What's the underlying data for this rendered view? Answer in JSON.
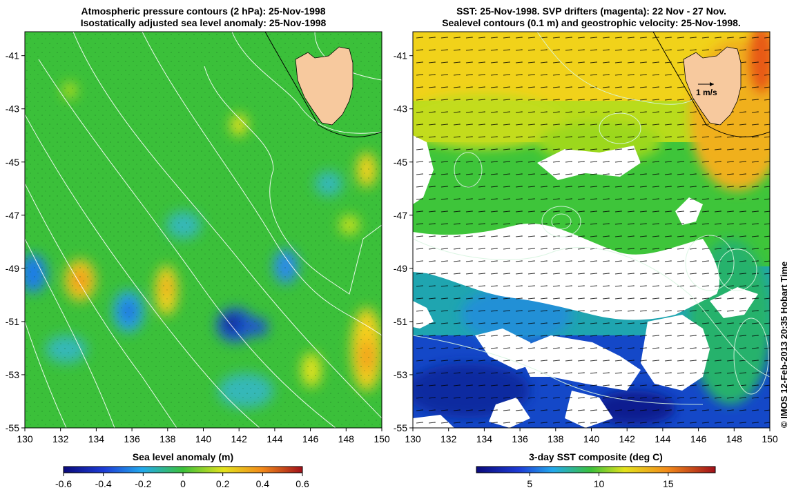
{
  "left_panel": {
    "title_line1": "Atmospheric pressure contours (2 hPa): 25-Nov-1998",
    "title_line2": "Isostatically adjusted sea level anomaly: 25-Nov-1998",
    "colorbar_label": "Sea level anomaly (m)",
    "colorbar_ticks": [
      "-0.6",
      "-0.4",
      "-0.2",
      "0",
      "0.2",
      "0.4",
      "0.6"
    ]
  },
  "right_panel": {
    "title_line1": "SST: 25-Nov-1998. SVP drifters (magenta): 22 Nov - 27 Nov.",
    "title_line2": "Sealevel contours (0.1 m) and geostrophic velocity: 25-Nov-1998.",
    "colorbar_label": "3-day SST composite (deg C)",
    "colorbar_ticks": [
      "5",
      "10",
      "15"
    ],
    "velocity_scale_label": "1 m/s"
  },
  "axes": {
    "x_ticks": [
      "130",
      "132",
      "134",
      "136",
      "138",
      "140",
      "142",
      "144",
      "146",
      "148",
      "150"
    ],
    "y_ticks": [
      "-41",
      "-43",
      "-45",
      "-47",
      "-49",
      "-51",
      "-53",
      "-55"
    ],
    "lon_range": [
      130,
      150
    ],
    "lat_range": [
      -55,
      -40.1
    ]
  },
  "copyright": "© IMOS 12-Feb-2013 20:35 Hobart Time",
  "colors": {
    "land": "#f7c99e",
    "ocean_green": "#3cc23c",
    "sst_cold": "#0a1ea0",
    "sst_warm": "#f0c000"
  }
}
